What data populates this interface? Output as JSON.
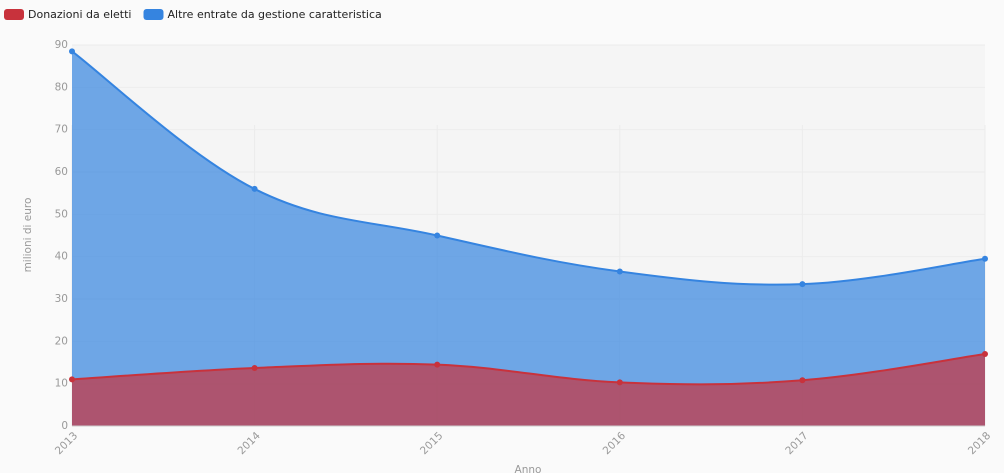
{
  "chart_data": {
    "type": "area",
    "x_label": "Anno",
    "y_label": "milioni di euro",
    "categories": [
      "2013",
      "2014",
      "2015",
      "2016",
      "2017",
      "2018"
    ],
    "series": [
      {
        "name": "Donazioni da eletti",
        "color": "#c8323c",
        "values": [
          11,
          13.7,
          14.5,
          10.3,
          10.8,
          17
        ]
      },
      {
        "name": "Altre entrate da gestione caratteristica",
        "color": "#3584e0",
        "values": [
          88.5,
          56,
          45,
          36.5,
          33.5,
          39.5
        ]
      }
    ],
    "ylim": [
      0,
      90
    ],
    "yticks": [
      0,
      10,
      20,
      30,
      40,
      50,
      60,
      70,
      80,
      90
    ],
    "grid": true,
    "legend": "top-left"
  }
}
